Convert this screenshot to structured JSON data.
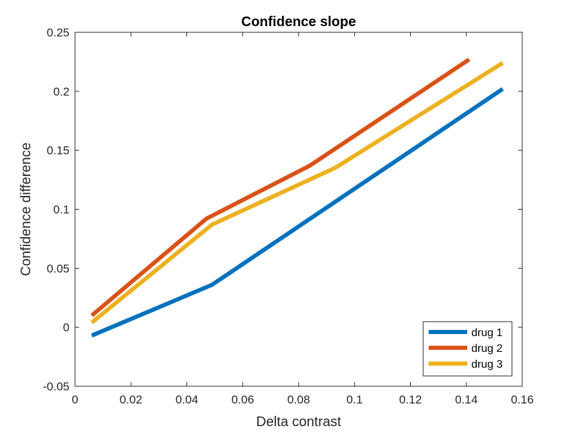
{
  "chart_data": {
    "type": "line",
    "title": "Confidence slope",
    "xlabel": "Delta contrast",
    "ylabel": "Confidence difference",
    "xlim": [
      0,
      0.16
    ],
    "ylim": [
      -0.05,
      0.25
    ],
    "xticks": [
      0,
      0.02,
      0.04,
      0.06,
      0.08,
      0.1,
      0.12,
      0.14,
      0.16
    ],
    "xtick_labels": [
      "0",
      "0.02",
      "0.04",
      "0.06",
      "0.08",
      "0.1",
      "0.12",
      "0.14",
      "0.16"
    ],
    "yticks": [
      -0.05,
      0,
      0.05,
      0.1,
      0.15,
      0.2,
      0.25
    ],
    "ytick_labels": [
      "-0.05",
      "0",
      "0.05",
      "0.1",
      "0.15",
      "0.2",
      "0.25"
    ],
    "grid": false,
    "legend_position": "bottom-right",
    "series": [
      {
        "name": "drug 1",
        "color": "#0072BD",
        "x": [
          0.006,
          0.049,
          0.153
        ],
        "y": [
          -0.007,
          0.036,
          0.202
        ]
      },
      {
        "name": "drug 2",
        "color": "#D95319",
        "x": [
          0.006,
          0.047,
          0.084,
          0.141
        ],
        "y": [
          0.01,
          0.092,
          0.137,
          0.227
        ]
      },
      {
        "name": "drug 3",
        "color": "#EDB120",
        "x": [
          0.006,
          0.049,
          0.093,
          0.153
        ],
        "y": [
          0.004,
          0.087,
          0.135,
          0.224
        ]
      }
    ]
  }
}
